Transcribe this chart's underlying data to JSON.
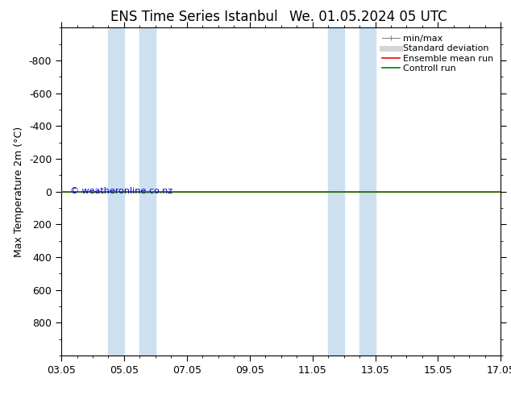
{
  "title_left": "ENS Time Series Istanbul",
  "title_right": "We. 01.05.2024 05 UTC",
  "ylabel": "Max Temperature 2m (°C)",
  "ylim_bottom": 1000,
  "ylim_top": -1000,
  "yticks": [
    -800,
    -600,
    -400,
    -200,
    0,
    200,
    400,
    600,
    800
  ],
  "xlim": [
    0,
    14
  ],
  "xtick_positions": [
    0,
    2,
    4,
    6,
    8,
    10,
    12,
    14
  ],
  "xtick_labels": [
    "03.05",
    "05.05",
    "07.05",
    "09.05",
    "11.05",
    "13.05",
    "15.05",
    "17.05"
  ],
  "shade_bands": [
    [
      1.5,
      2.0
    ],
    [
      2.5,
      3.0
    ],
    [
      8.5,
      9.0
    ],
    [
      9.5,
      10.0
    ]
  ],
  "shade_color": "#cce0f0",
  "green_line_y": 0,
  "green_line_color": "#008000",
  "red_line_color": "#ff0000",
  "watermark": "© weatheronline.co.nz",
  "watermark_color": "#0000cc",
  "background_color": "#ffffff",
  "title_fontsize": 12,
  "tick_fontsize": 9,
  "ylabel_fontsize": 9,
  "legend_fontsize": 8
}
